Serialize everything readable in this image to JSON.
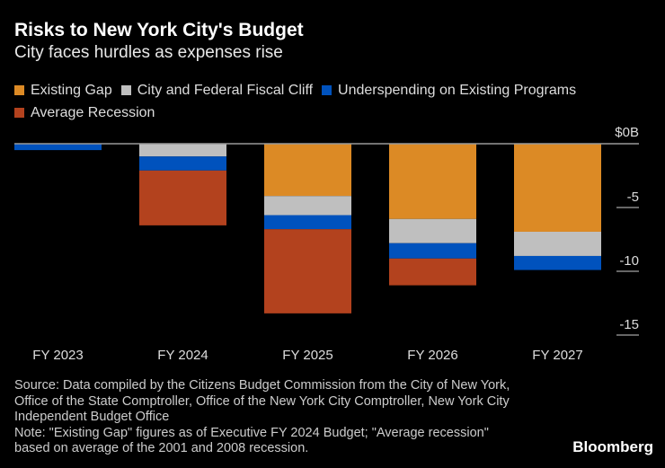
{
  "title": "Risks to New York City's Budget",
  "subtitle": "City faces hurdles as expenses rise",
  "chart_data": {
    "type": "bar",
    "stacked": true,
    "categories": [
      "FY 2023",
      "FY 2024",
      "FY 2025",
      "FY 2026",
      "FY 2027"
    ],
    "series": [
      {
        "name": "Existing Gap",
        "color": "#dc8a25",
        "values": [
          0,
          0,
          -4.1,
          -5.9,
          -6.9
        ]
      },
      {
        "name": "City and Federal Fiscal Cliff",
        "color": "#bfbfbf",
        "values": [
          0,
          -1.0,
          -1.5,
          -1.9,
          -1.9
        ]
      },
      {
        "name": "Underspending on Existing Programs",
        "color": "#0052bd",
        "values": [
          -0.5,
          -1.1,
          -1.1,
          -1.2,
          -1.1
        ]
      },
      {
        "name": "Average Recession",
        "color": "#b3421e",
        "values": [
          0,
          -4.3,
          -6.6,
          -2.1,
          0
        ]
      }
    ],
    "yticks": [
      0,
      -5,
      -10,
      -15
    ],
    "ytick_labels": [
      "$0B",
      "-5",
      "-10",
      "-15"
    ],
    "ylim": [
      -15,
      0
    ],
    "legend": "top",
    "grid": false
  },
  "notes": {
    "source": "Source: Data compiled by the Citizens Budget Commission from the City of New York, Office of the State Comptroller, Office of the New York City Comptroller, New York City Independent Budget Office",
    "note": "Note: \"Existing Gap\" figures as of Executive FY 2024 Budget; \"Average recession\" based on average of the 2001 and 2008 recession."
  },
  "brand": "Bloomberg"
}
